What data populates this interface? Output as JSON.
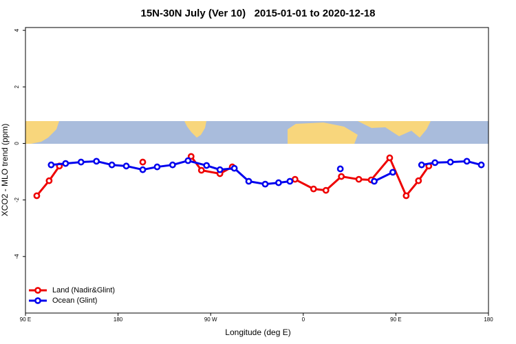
{
  "chart_data": {
    "type": "line",
    "title": "15N-30N July (Ver 10)   2015-01-01 to 2020-12-18",
    "x_label": "Longitude (deg E)",
    "y_label": "XCO2 - MLO trend (ppm)",
    "xlim": [
      90,
      540
    ],
    "xticks": [
      {
        "value": 90,
        "label": "90 E"
      },
      180,
      {
        "value": 270,
        "label": "90 W"
      },
      {
        "value": 360,
        "label": "0"
      },
      {
        "value": 450,
        "label": "90 E"
      },
      {
        "value": 540,
        "label": "180"
      }
    ],
    "ylim": [
      -6,
      4.1
    ],
    "yticks": [
      -4,
      -2,
      0,
      2,
      4
    ],
    "legend": "bottom-left",
    "series": [
      {
        "name": "Land (Nadir&Glint)",
        "color": "#ee0000",
        "x": [
          101,
          113,
          123,
          null,
          204,
          null,
          251,
          261,
          279,
          291,
          null,
          352,
          370,
          382,
          397,
          414,
          426,
          444,
          460,
          472,
          482
        ],
        "values": [
          -1.85,
          -1.32,
          -0.8,
          null,
          -0.66,
          null,
          -0.46,
          -0.95,
          -1.07,
          -0.83,
          null,
          -1.27,
          -1.61,
          -1.66,
          -1.17,
          -1.27,
          -1.29,
          -0.51,
          -1.85,
          -1.32,
          -0.8
        ]
      },
      {
        "name": "Ocean (Glint)",
        "color": "#0000ee",
        "x": [
          115,
          129,
          144,
          159,
          174,
          188,
          204,
          218,
          233,
          248,
          266,
          279,
          293,
          307,
          323,
          336,
          347,
          null,
          396,
          null,
          429,
          447,
          null,
          475,
          488,
          503,
          519,
          533
        ],
        "values": [
          -0.76,
          -0.71,
          -0.66,
          -0.63,
          -0.76,
          -0.8,
          -0.93,
          -0.83,
          -0.76,
          -0.61,
          -0.78,
          -0.93,
          -0.88,
          -1.34,
          -1.44,
          -1.39,
          -1.34,
          null,
          -0.9,
          null,
          -1.34,
          -1.02,
          null,
          -0.76,
          -0.68,
          -0.66,
          -0.63,
          -0.76
        ]
      }
    ]
  }
}
